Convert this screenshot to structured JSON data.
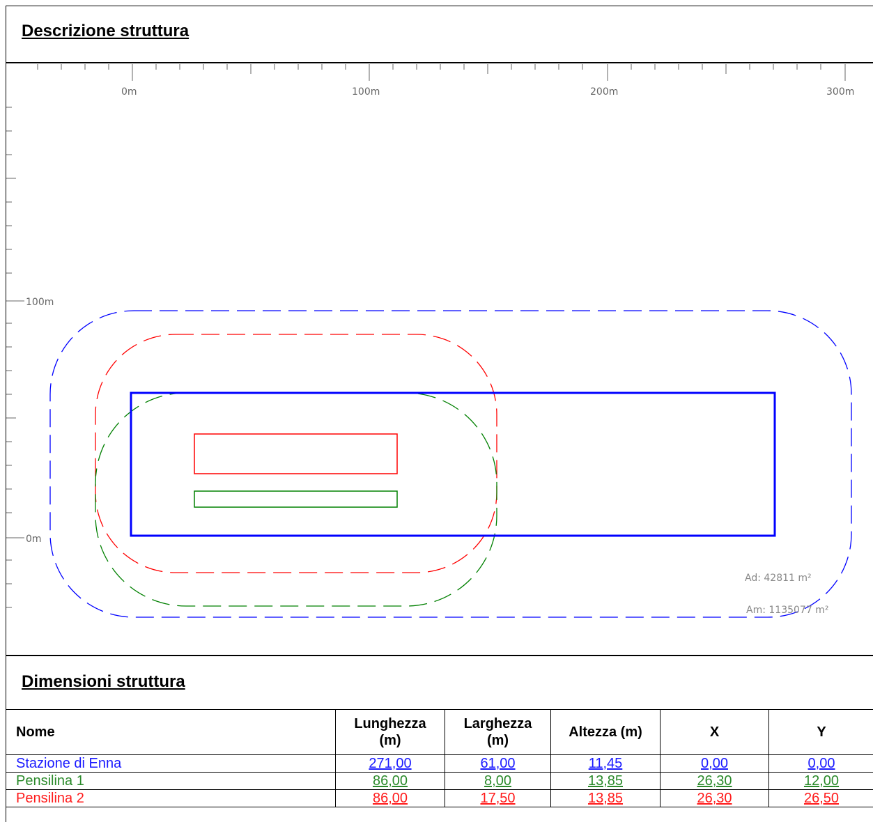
{
  "header": {
    "title": "Descrizione struttura"
  },
  "plan": {
    "x_ticks": [
      "0m",
      "100m",
      "200m",
      "300m"
    ],
    "y_ticks": [
      "100m",
      "0m"
    ],
    "area_labels": {
      "ad": "Ad: 42811 m²",
      "am": "Am: 1135077 m²"
    },
    "colors": {
      "blue": "#0000ff",
      "green": "#008000",
      "red": "#ff0000"
    }
  },
  "dimensions": {
    "title": "Dimensioni struttura",
    "columns": [
      {
        "line1": "Nome",
        "line2": ""
      },
      {
        "line1": "Lunghezza",
        "line2": "(m)"
      },
      {
        "line1": "Larghezza",
        "line2": "(m)"
      },
      {
        "line1": "Altezza (m)",
        "line2": ""
      },
      {
        "line1": "X",
        "line2": ""
      },
      {
        "line1": "Y",
        "line2": ""
      }
    ],
    "rows": [
      {
        "name": "Stazione di Enna",
        "lunghezza": "271,00",
        "larghezza": "61,00",
        "altezza": "11,45",
        "x": "0,00",
        "y": "0,00"
      },
      {
        "name": "Pensilina 1",
        "lunghezza": "86,00",
        "larghezza": "8,00",
        "altezza": "13,85",
        "x": "26,30",
        "y": "12,00"
      },
      {
        "name": "Pensilina 2",
        "lunghezza": "86,00",
        "larghezza": "17,50",
        "altezza": "13,85",
        "x": "26,30",
        "y": "26,50"
      }
    ]
  }
}
